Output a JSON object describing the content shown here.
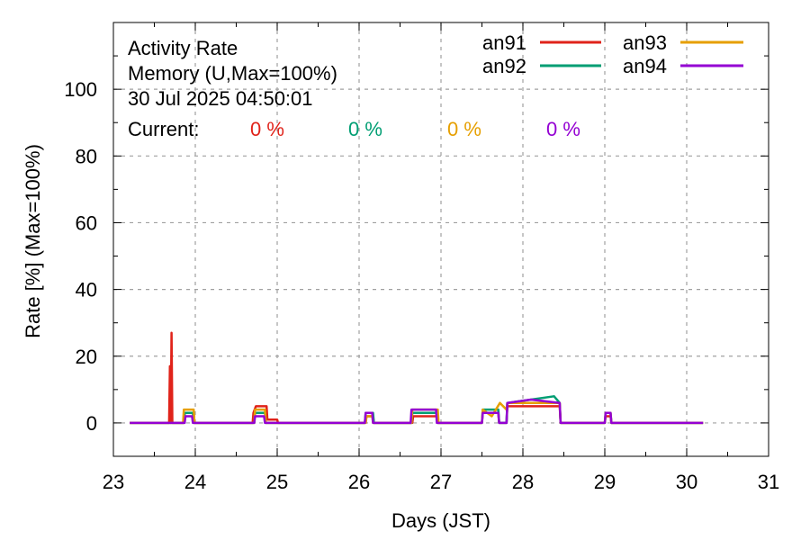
{
  "chart_data": {
    "type": "line",
    "title_lines": [
      "Activity Rate",
      "Memory (U,Max=100%)",
      "30 Jul 2025 04:50:01"
    ],
    "current_label": "Current:",
    "xlabel": "Days (JST)",
    "ylabel": "Rate [%]  (Max=100%)",
    "xlim": [
      23,
      31
    ],
    "ylim": [
      -10,
      120
    ],
    "x_ticks": [
      23,
      24,
      25,
      26,
      27,
      28,
      29,
      30,
      31
    ],
    "y_ticks": [
      0,
      20,
      40,
      60,
      80,
      100
    ],
    "grid": true,
    "legend_position": "top-right",
    "series": [
      {
        "name": "an91",
        "color": "#e0231a",
        "current": "0 %",
        "points": [
          [
            23.2,
            0
          ],
          [
            23.68,
            0
          ],
          [
            23.69,
            17
          ],
          [
            23.7,
            0
          ],
          [
            23.71,
            27
          ],
          [
            23.72,
            0
          ],
          [
            23.73,
            0
          ],
          [
            23.86,
            0
          ],
          [
            23.87,
            3
          ],
          [
            23.98,
            3
          ],
          [
            23.99,
            0
          ],
          [
            24.7,
            0
          ],
          [
            24.71,
            3
          ],
          [
            24.74,
            5
          ],
          [
            24.87,
            5
          ],
          [
            24.88,
            1
          ],
          [
            25.0,
            1
          ],
          [
            25.01,
            0
          ],
          [
            26.08,
            0
          ],
          [
            26.09,
            2
          ],
          [
            26.17,
            2
          ],
          [
            26.18,
            0
          ],
          [
            26.65,
            0
          ],
          [
            26.66,
            2
          ],
          [
            26.95,
            2
          ],
          [
            26.96,
            0
          ],
          [
            27.5,
            0
          ],
          [
            27.51,
            3
          ],
          [
            27.7,
            3
          ],
          [
            27.71,
            0
          ],
          [
            27.8,
            0
          ],
          [
            27.81,
            5
          ],
          [
            28.45,
            5
          ],
          [
            28.46,
            0
          ],
          [
            29.0,
            0
          ],
          [
            29.01,
            2
          ],
          [
            29.07,
            2
          ],
          [
            29.08,
            0
          ],
          [
            30.2,
            0
          ]
        ]
      },
      {
        "name": "an92",
        "color": "#009e73",
        "current": "0 %",
        "points": [
          [
            23.2,
            0
          ],
          [
            23.86,
            0
          ],
          [
            23.87,
            3
          ],
          [
            23.97,
            3
          ],
          [
            23.98,
            0
          ],
          [
            24.72,
            0
          ],
          [
            24.73,
            3
          ],
          [
            24.85,
            3
          ],
          [
            24.86,
            0
          ],
          [
            26.07,
            0
          ],
          [
            26.08,
            3
          ],
          [
            26.17,
            3
          ],
          [
            26.18,
            0
          ],
          [
            26.64,
            0
          ],
          [
            26.65,
            3
          ],
          [
            26.95,
            3
          ],
          [
            26.96,
            0
          ],
          [
            27.5,
            0
          ],
          [
            27.51,
            4
          ],
          [
            27.7,
            4
          ],
          [
            27.71,
            0
          ],
          [
            27.8,
            0
          ],
          [
            27.81,
            6
          ],
          [
            28.38,
            8
          ],
          [
            28.45,
            6
          ],
          [
            28.46,
            0
          ],
          [
            29.0,
            0
          ],
          [
            29.01,
            3
          ],
          [
            29.07,
            3
          ],
          [
            29.08,
            0
          ],
          [
            30.2,
            0
          ]
        ]
      },
      {
        "name": "an93",
        "color": "#e69f00",
        "current": "0 %",
        "points": [
          [
            23.2,
            0
          ],
          [
            23.85,
            0
          ],
          [
            23.86,
            4
          ],
          [
            23.98,
            4
          ],
          [
            23.99,
            0
          ],
          [
            24.72,
            0
          ],
          [
            24.73,
            4
          ],
          [
            24.85,
            4
          ],
          [
            24.86,
            0
          ],
          [
            26.08,
            0
          ],
          [
            26.09,
            2
          ],
          [
            26.16,
            2
          ],
          [
            26.17,
            0
          ],
          [
            26.64,
            0
          ],
          [
            26.65,
            4
          ],
          [
            26.96,
            4
          ],
          [
            26.97,
            0
          ],
          [
            27.5,
            0
          ],
          [
            27.51,
            4
          ],
          [
            27.62,
            2
          ],
          [
            27.72,
            6
          ],
          [
            27.8,
            4
          ],
          [
            27.81,
            6
          ],
          [
            28.45,
            6
          ],
          [
            28.46,
            0
          ],
          [
            29.0,
            0
          ],
          [
            29.01,
            3
          ],
          [
            29.07,
            3
          ],
          [
            29.08,
            0
          ],
          [
            30.2,
            0
          ]
        ]
      },
      {
        "name": "an94",
        "color": "#9400d3",
        "current": "0 %",
        "points": [
          [
            23.2,
            0
          ],
          [
            23.87,
            0
          ],
          [
            23.88,
            2
          ],
          [
            23.96,
            2
          ],
          [
            23.97,
            0
          ],
          [
            24.72,
            0
          ],
          [
            24.73,
            2
          ],
          [
            24.84,
            2
          ],
          [
            24.85,
            0
          ],
          [
            26.07,
            0
          ],
          [
            26.08,
            3
          ],
          [
            26.16,
            3
          ],
          [
            26.17,
            0
          ],
          [
            26.63,
            0
          ],
          [
            26.64,
            4
          ],
          [
            26.94,
            4
          ],
          [
            26.95,
            0
          ],
          [
            27.5,
            0
          ],
          [
            27.51,
            3
          ],
          [
            27.7,
            3
          ],
          [
            27.71,
            0
          ],
          [
            27.8,
            0
          ],
          [
            27.81,
            6
          ],
          [
            28.1,
            7
          ],
          [
            28.45,
            6
          ],
          [
            28.46,
            0
          ],
          [
            29.0,
            0
          ],
          [
            29.01,
            3
          ],
          [
            29.07,
            3
          ],
          [
            29.08,
            0
          ],
          [
            30.2,
            0
          ]
        ]
      }
    ]
  }
}
